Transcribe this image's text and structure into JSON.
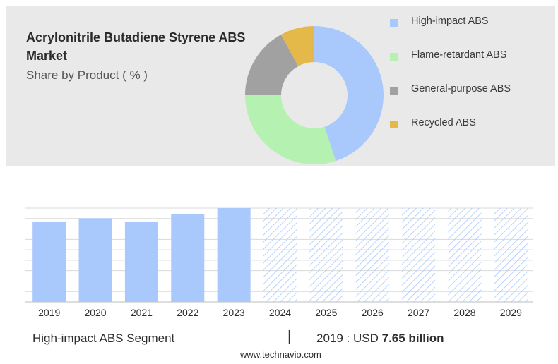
{
  "header": {
    "title": "Acrylonitrile Butadiene Styrene ABS Market",
    "subtitle": "Share by Product ( % )"
  },
  "legend": [
    {
      "label": "High-impact ABS",
      "color": "#a9c8fb"
    },
    {
      "label": "Flame-retardant ABS",
      "color": "#b5f2b2"
    },
    {
      "label": "General-purpose ABS",
      "color": "#a1a1a1"
    },
    {
      "label": "Recycled ABS",
      "color": "#e5b84a"
    }
  ],
  "chart_data": [
    {
      "type": "pie",
      "title": "Share by Product ( % )",
      "labels": [
        "High-impact ABS",
        "Flame-retardant ABS",
        "General-purpose ABS",
        "Recycled ABS"
      ],
      "values": [
        45,
        30,
        17,
        8
      ],
      "colors": [
        "#a9c8fb",
        "#b5f2b2",
        "#a1a1a1",
        "#e5b84a"
      ],
      "donut": true
    },
    {
      "type": "bar",
      "categories": [
        "2019",
        "2020",
        "2021",
        "2022",
        "2023",
        "2024",
        "2025",
        "2026",
        "2027",
        "2028",
        "2029"
      ],
      "values": [
        7.65,
        8.03,
        7.65,
        8.43,
        9.0,
        9.0,
        9.0,
        9.0,
        9.0,
        9.0,
        9.0
      ],
      "forecast_from": "2024",
      "series_name": "High-impact ABS",
      "ylim": [
        0,
        9
      ],
      "grid": true,
      "color": "#a9c8fb",
      "forecast_style": "hatched"
    }
  ],
  "footer": {
    "segment": "High-impact ABS Segment",
    "separator": "|",
    "value_prefix": "2019 : USD",
    "value_bold": "7.65 billion",
    "source": "www.technavio.com"
  }
}
